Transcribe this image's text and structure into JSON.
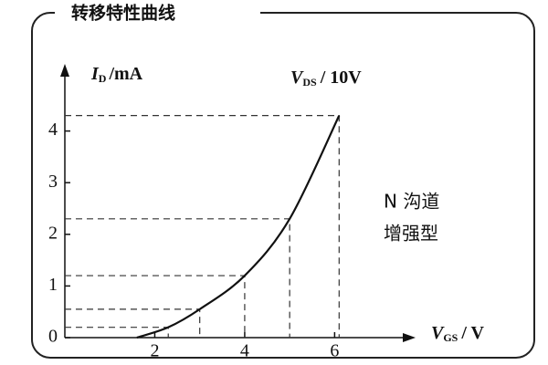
{
  "chart_data": {
    "type": "line",
    "title": "转移特性曲线",
    "y_label": {
      "symbol": "I",
      "sub": "D",
      "unit": "/mA"
    },
    "x_label": {
      "symbol": "V",
      "sub": "GS",
      "unit": "/ V"
    },
    "annotation": {
      "symbol": "V",
      "sub": "DS",
      "unit": "/ 10V"
    },
    "note": [
      "N 沟道",
      "增强型"
    ],
    "x": [
      1.6,
      2.3,
      3,
      4,
      5,
      6.1
    ],
    "series": [
      {
        "values": [
          0,
          0.2,
          0.55,
          1.2,
          2.3,
          4.3
        ],
        "color": "#111111"
      }
    ],
    "xlim": [
      0,
      7.8
    ],
    "ylim": [
      0,
      5.3
    ],
    "xticks": [
      2,
      4,
      6
    ],
    "yticks": [
      0,
      1,
      2,
      3,
      4
    ],
    "guides": true
  }
}
